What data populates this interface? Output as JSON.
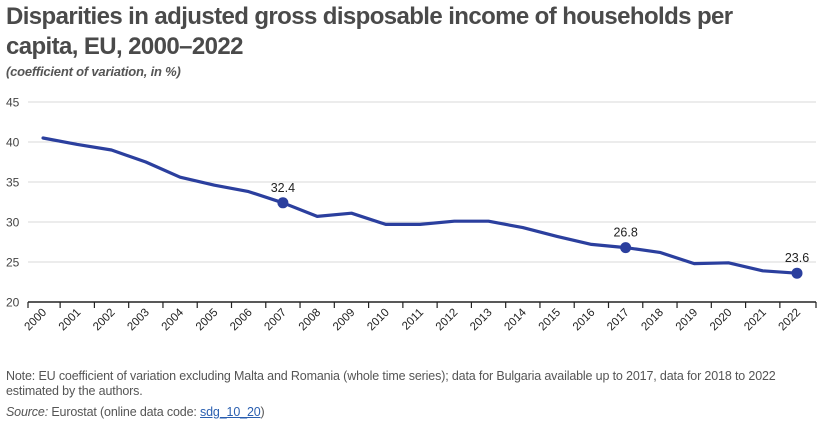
{
  "title": "Disparities in adjusted gross disposable income of households per capita, EU, 2000–2022",
  "subtitle": "(coefficient of variation, in %)",
  "note": "Note: EU coefficient of variation excluding Malta and Romania (whole time series); data for Bulgaria available up to 2017, data for 2018 to 2022 estimated by the authors.",
  "source": {
    "label": "Source:",
    "text": " Eurostat (online data code: ",
    "link": "sdg_10_20",
    "close": ")"
  },
  "colors": {
    "line": "#2b3f9e",
    "grid": "#d9d9d9",
    "axis": "#222222"
  },
  "chart_data": {
    "type": "line",
    "x": [
      "2000",
      "2001",
      "2002",
      "2003",
      "2004",
      "2005",
      "2006",
      "2007",
      "2008",
      "2009",
      "2010",
      "2011",
      "2012",
      "2013",
      "2014",
      "2015",
      "2016",
      "2017",
      "2018",
      "2019",
      "2020",
      "2021",
      "2022"
    ],
    "values": [
      40.5,
      39.7,
      39.0,
      37.5,
      35.6,
      34.6,
      33.8,
      32.4,
      30.7,
      31.1,
      29.7,
      29.7,
      30.1,
      30.1,
      29.3,
      28.2,
      27.2,
      26.8,
      26.2,
      24.8,
      24.9,
      23.9,
      23.6
    ],
    "ylim": [
      20,
      45
    ],
    "yticks": [
      "20",
      "25",
      "30",
      "35",
      "40",
      "45"
    ],
    "highlighted": [
      {
        "x": "2007",
        "label": "32.4"
      },
      {
        "x": "2017",
        "label": "26.8"
      },
      {
        "x": "2022",
        "label": "23.6"
      }
    ],
    "grid": true
  }
}
